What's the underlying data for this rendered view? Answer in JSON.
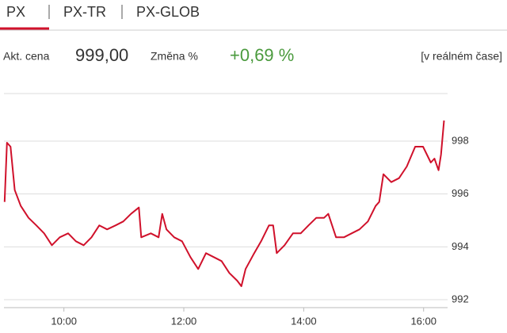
{
  "tabs": [
    "PX",
    "PX-TR",
    "PX-GLOB"
  ],
  "info": {
    "price_label": "Akt. cena",
    "price": "999,00",
    "change_label": "Změna %",
    "change": "+0,69 %",
    "mode": "[v reálném čase]"
  },
  "chart_data": {
    "type": "line",
    "color": "#d0112b",
    "grid": true,
    "x": [
      9.01,
      9.05,
      9.11,
      9.18,
      9.28,
      9.41,
      9.54,
      9.67,
      9.8,
      9.93,
      10.07,
      10.2,
      10.33,
      10.46,
      10.59,
      10.72,
      10.86,
      10.99,
      11.12,
      11.25,
      11.29,
      11.45,
      11.58,
      11.64,
      11.71,
      11.84,
      11.97,
      12.11,
      12.24,
      12.37,
      12.5,
      12.63,
      12.76,
      12.89,
      12.96,
      13.03,
      13.16,
      13.29,
      13.42,
      13.49,
      13.55,
      13.68,
      13.82,
      13.95,
      14.08,
      14.21,
      14.34,
      14.41,
      14.54,
      14.67,
      14.8,
      14.93,
      15.07,
      15.2,
      15.26,
      15.33,
      15.46,
      15.59,
      15.72,
      15.86,
      15.99,
      16.12,
      16.18,
      16.25,
      16.29,
      16.34
    ],
    "series": [
      {
        "name": "PX",
        "color": "#d0112b",
        "values": [
          995.7,
          997.94,
          997.79,
          996.15,
          995.55,
          995.1,
          994.81,
          994.51,
          994.06,
          994.36,
          994.51,
          994.21,
          994.06,
          994.36,
          994.81,
          994.66,
          994.81,
          994.96,
          995.25,
          995.49,
          994.36,
          994.51,
          994.36,
          995.25,
          994.66,
          994.36,
          994.21,
          993.61,
          993.16,
          993.76,
          993.61,
          993.46,
          993.01,
          992.72,
          992.51,
          993.16,
          993.7,
          994.21,
          994.81,
          994.81,
          993.76,
          994.06,
          994.51,
          994.51,
          994.81,
          995.1,
          995.1,
          995.25,
          994.36,
          994.36,
          994.51,
          994.66,
          994.96,
          995.55,
          995.7,
          996.75,
          996.45,
          996.6,
          997.04,
          997.79,
          997.79,
          997.19,
          997.34,
          996.9,
          997.49,
          998.78
        ]
      }
    ],
    "xlim": [
      9.0,
      16.4
    ],
    "xticks": [
      {
        "value": 10,
        "label": "10:00"
      },
      {
        "value": 12,
        "label": "12:00"
      },
      {
        "value": 14,
        "label": "14:00"
      },
      {
        "value": 16,
        "label": "16:00"
      }
    ],
    "ylim": [
      991.7,
      999.8
    ],
    "yticks": [
      992,
      994,
      996,
      998
    ]
  }
}
